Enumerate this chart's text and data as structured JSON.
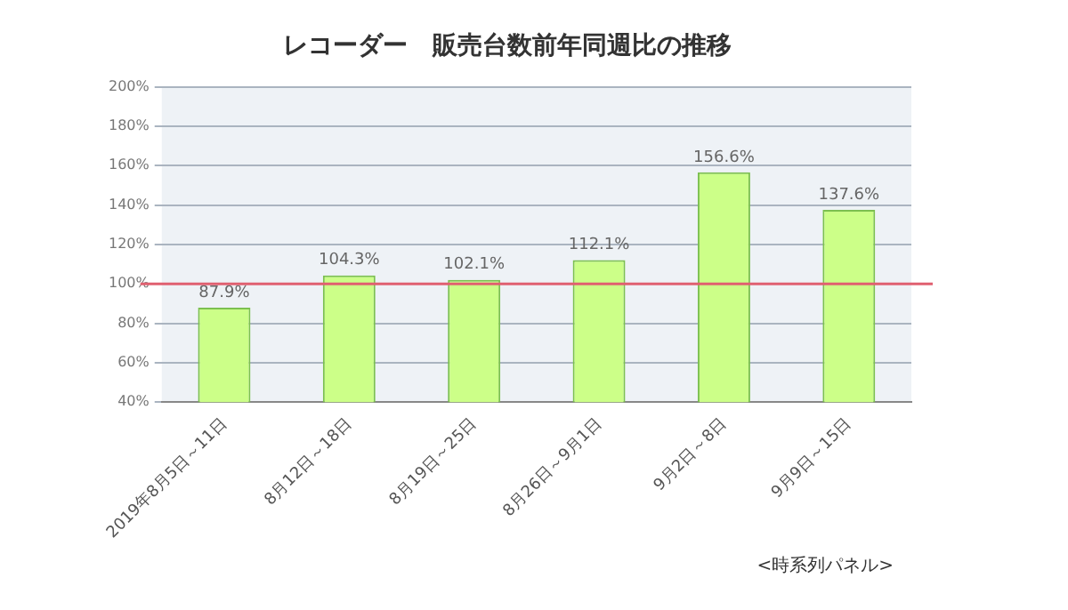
{
  "chart_data": {
    "type": "bar",
    "title": "レコーダー　販売台数前年同週比の推移",
    "categories": [
      "2019年8月5日～11日",
      "8月12日～18日",
      "8月19日～25日",
      "8月26日～9月1日",
      "9月2日～8日",
      "9月9日～15日"
    ],
    "values": [
      87.9,
      104.3,
      102.1,
      112.1,
      156.6,
      137.6
    ],
    "value_labels": [
      "87.9%",
      "104.3%",
      "102.1%",
      "112.1%",
      "156.6%",
      "137.6%"
    ],
    "color": "#ccff88",
    "ylim": [
      40,
      200
    ],
    "yticks": [
      {
        "value": 40,
        "label": "40%"
      },
      {
        "value": 60,
        "label": "60%"
      },
      {
        "value": 80,
        "label": "80%"
      },
      {
        "value": 100,
        "label": "100%"
      },
      {
        "value": 120,
        "label": "120%"
      },
      {
        "value": 140,
        "label": "140%"
      },
      {
        "value": 160,
        "label": "160%"
      },
      {
        "value": 180,
        "label": "180%"
      },
      {
        "value": 200,
        "label": "200%"
      }
    ],
    "grid": "y",
    "ref_lines": [
      {
        "axis": "y",
        "value": 100,
        "color": "#e06070"
      }
    ],
    "annotations": [
      "<時系列パネル>"
    ]
  }
}
